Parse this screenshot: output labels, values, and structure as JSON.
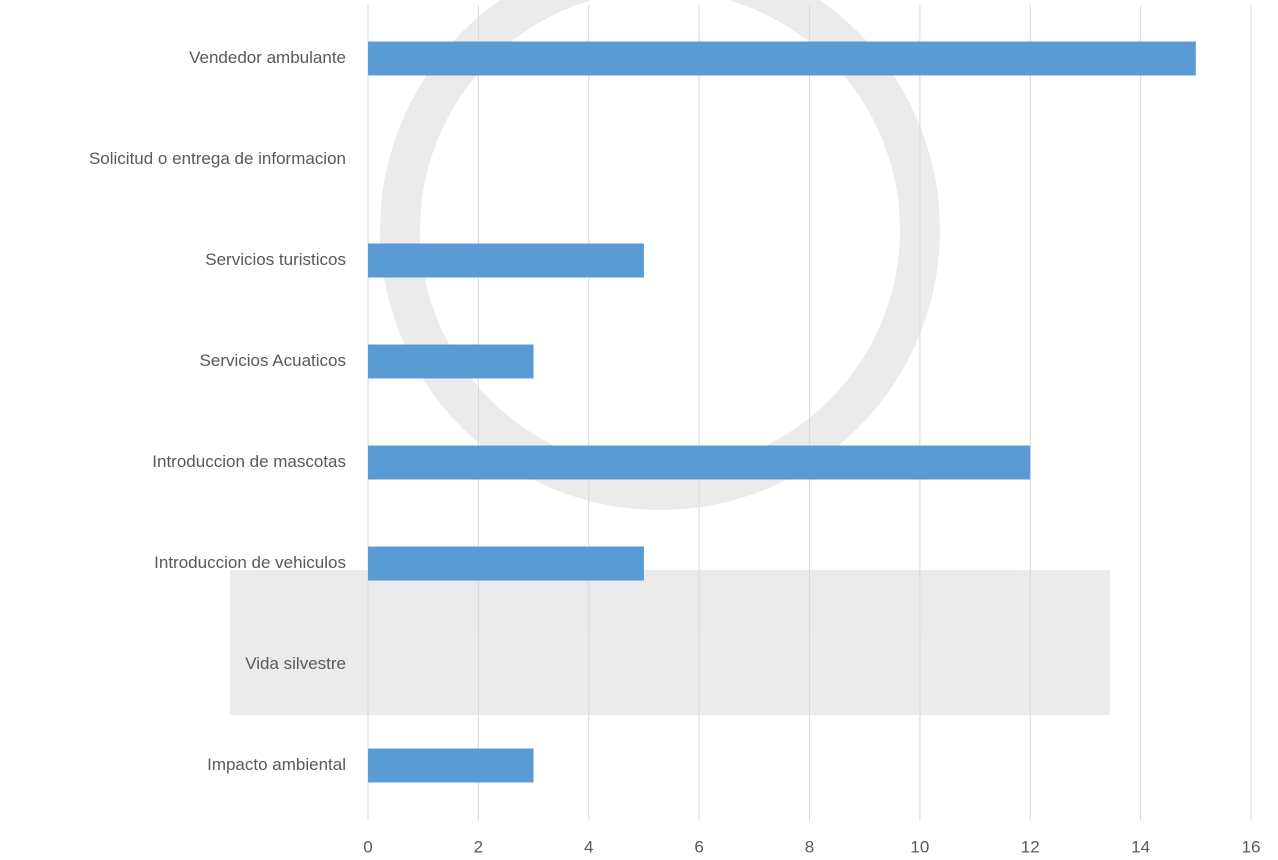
{
  "chart_data": {
    "type": "bar",
    "orientation": "horizontal",
    "categories": [
      "Vendedor ambulante",
      "Solicitud o entrega de informacion",
      "Servicios turisticos",
      "Servicios Acuaticos",
      "Introduccion de mascotas",
      "Introduccion de vehiculos",
      "Vida silvestre",
      "Impacto ambiental"
    ],
    "values": [
      15,
      0,
      5,
      3,
      12,
      5,
      0,
      3
    ],
    "color": "#5b9bd5",
    "xlim": [
      0,
      16
    ],
    "xticks": [
      0,
      2,
      4,
      6,
      8,
      10,
      12,
      14,
      16
    ],
    "grid": true
  }
}
